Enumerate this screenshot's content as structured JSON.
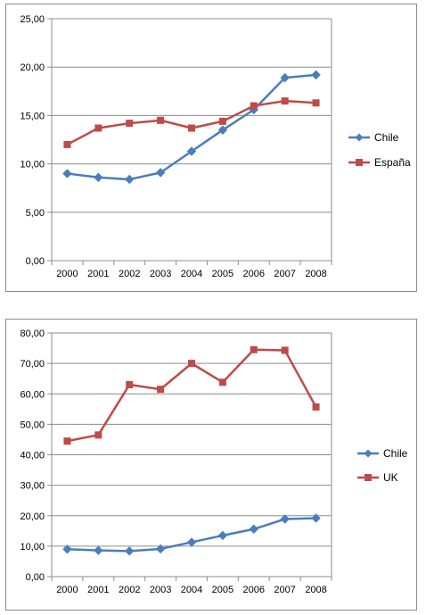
{
  "chart_data": [
    {
      "type": "line",
      "categories": [
        "2000",
        "2001",
        "2002",
        "2003",
        "2004",
        "2005",
        "2006",
        "2007",
        "2008"
      ],
      "y_tick_labels": [
        "0,00",
        "5,00",
        "10,00",
        "15,00",
        "20,00",
        "25,00"
      ],
      "ylim": [
        0,
        25
      ],
      "y_step": 5,
      "grid": "horizontal",
      "legend_position": "right",
      "series": [
        {
          "name": "Chile",
          "color": "#4a7ebb",
          "marker": "diamond",
          "values": [
            9.0,
            8.6,
            8.4,
            9.1,
            11.3,
            13.5,
            15.6,
            18.9,
            19.2
          ]
        },
        {
          "name": "España",
          "color": "#be4b48",
          "marker": "square",
          "values": [
            12.0,
            13.7,
            14.2,
            14.5,
            13.7,
            14.4,
            16.0,
            16.5,
            16.3
          ]
        }
      ]
    },
    {
      "type": "line",
      "categories": [
        "2000",
        "2001",
        "2002",
        "2003",
        "2004",
        "2005",
        "2006",
        "2007",
        "2008"
      ],
      "y_tick_labels": [
        "0,00",
        "10,00",
        "20,00",
        "30,00",
        "40,00",
        "50,00",
        "60,00",
        "70,00",
        "80,00"
      ],
      "ylim": [
        0,
        80
      ],
      "y_step": 10,
      "grid": "horizontal",
      "legend_position": "right",
      "series": [
        {
          "name": "Chile",
          "color": "#4a7ebb",
          "marker": "diamond",
          "values": [
            9.0,
            8.6,
            8.4,
            9.1,
            11.3,
            13.5,
            15.6,
            18.9,
            19.2
          ]
        },
        {
          "name": "UK",
          "color": "#be4b48",
          "marker": "square",
          "values": [
            44.5,
            46.5,
            63.0,
            61.5,
            70.0,
            63.8,
            74.5,
            74.3,
            55.7
          ]
        }
      ]
    }
  ]
}
